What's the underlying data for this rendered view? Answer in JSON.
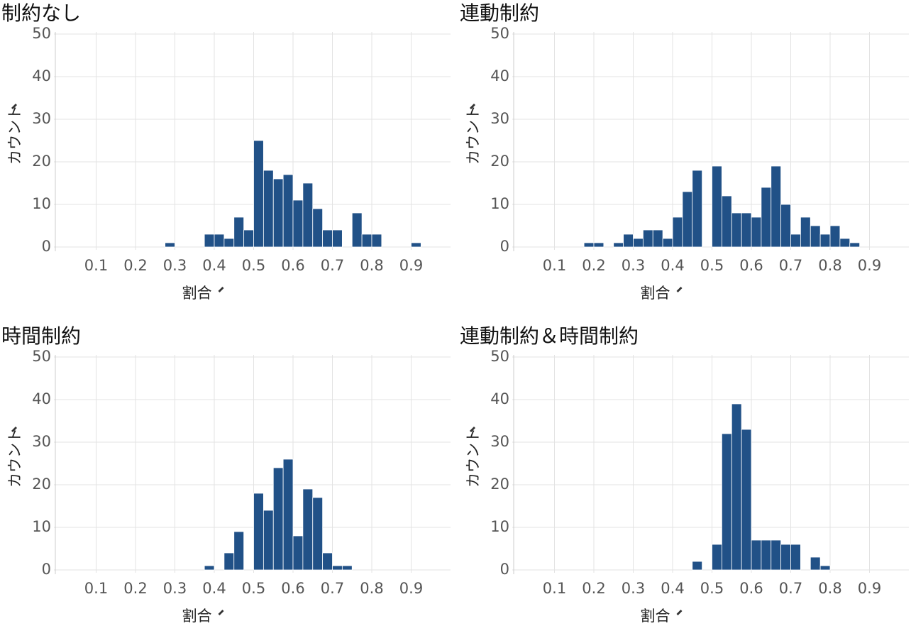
{
  "chart_data": [
    {
      "type": "histogram",
      "title": "制約なし",
      "x_label": "割合",
      "y_label": "カウント",
      "color": "#215187",
      "bins": [
        0,
        0.025,
        0.05,
        0.075,
        0.1,
        0.125,
        0.15,
        0.175,
        0.2,
        0.225,
        0.25,
        0.275,
        0.3,
        0.325,
        0.35,
        0.375,
        0.4,
        0.425,
        0.45,
        0.475,
        0.5,
        0.525,
        0.55,
        0.575,
        0.6,
        0.625,
        0.65,
        0.675,
        0.7,
        0.725,
        0.75,
        0.775,
        0.8,
        0.825,
        0.85,
        0.875,
        0.9,
        0.925,
        0.95,
        0.975,
        1
      ],
      "counts": [
        0,
        0,
        0,
        0,
        0,
        0,
        0,
        0,
        0,
        0,
        0,
        1,
        0,
        0,
        0,
        3,
        3,
        2,
        7,
        4,
        25,
        18,
        16,
        17,
        11,
        15,
        9,
        4,
        4,
        0,
        8,
        3,
        3,
        0,
        0,
        0,
        1,
        0,
        0,
        0
      ],
      "xlim": [
        0,
        1
      ],
      "ylim": [
        0,
        50
      ],
      "xticks": [
        0.1,
        0.2,
        0.3,
        0.4,
        0.5,
        0.6,
        0.7,
        0.8,
        0.9
      ],
      "yticks": [
        0,
        10,
        20,
        30,
        40,
        50
      ],
      "grid": true
    },
    {
      "type": "histogram",
      "title": "連動制約",
      "x_label": "割合",
      "y_label": "カウント",
      "color": "#215187",
      "bins": [
        0,
        0.025,
        0.05,
        0.075,
        0.1,
        0.125,
        0.15,
        0.175,
        0.2,
        0.225,
        0.25,
        0.275,
        0.3,
        0.325,
        0.35,
        0.375,
        0.4,
        0.425,
        0.45,
        0.475,
        0.5,
        0.525,
        0.55,
        0.575,
        0.6,
        0.625,
        0.65,
        0.675,
        0.7,
        0.725,
        0.75,
        0.775,
        0.8,
        0.825,
        0.85,
        0.875,
        0.9,
        0.925,
        0.95,
        0.975,
        1
      ],
      "counts": [
        0,
        0,
        0,
        0,
        0,
        0,
        0,
        1,
        1,
        0,
        1,
        3,
        2,
        4,
        4,
        2,
        7,
        13,
        18,
        0,
        19,
        12,
        8,
        8,
        7,
        14,
        19,
        10,
        3,
        7,
        5,
        3,
        5,
        2,
        1,
        0,
        0,
        0,
        0,
        0
      ],
      "xlim": [
        0,
        1
      ],
      "ylim": [
        0,
        50
      ],
      "xticks": [
        0.1,
        0.2,
        0.3,
        0.4,
        0.5,
        0.6,
        0.7,
        0.8,
        0.9
      ],
      "yticks": [
        0,
        10,
        20,
        30,
        40,
        50
      ],
      "grid": true
    },
    {
      "type": "histogram",
      "title": "時間制約",
      "x_label": "割合",
      "y_label": "カウント",
      "color": "#215187",
      "bins": [
        0,
        0.025,
        0.05,
        0.075,
        0.1,
        0.125,
        0.15,
        0.175,
        0.2,
        0.225,
        0.25,
        0.275,
        0.3,
        0.325,
        0.35,
        0.375,
        0.4,
        0.425,
        0.45,
        0.475,
        0.5,
        0.525,
        0.55,
        0.575,
        0.6,
        0.625,
        0.65,
        0.675,
        0.7,
        0.725,
        0.75,
        0.775,
        0.8,
        0.825,
        0.85,
        0.875,
        0.9,
        0.925,
        0.95,
        0.975,
        1
      ],
      "counts": [
        0,
        0,
        0,
        0,
        0,
        0,
        0,
        0,
        0,
        0,
        0,
        0,
        0,
        0,
        0,
        1,
        0,
        4,
        9,
        0,
        18,
        14,
        24,
        26,
        8,
        19,
        17,
        4,
        1,
        1,
        0,
        0,
        0,
        0,
        0,
        0,
        0,
        0,
        0,
        0
      ],
      "xlim": [
        0,
        1
      ],
      "ylim": [
        0,
        50
      ],
      "xticks": [
        0.1,
        0.2,
        0.3,
        0.4,
        0.5,
        0.6,
        0.7,
        0.8,
        0.9
      ],
      "yticks": [
        0,
        10,
        20,
        30,
        40,
        50
      ],
      "grid": true
    },
    {
      "type": "histogram",
      "title": "連動制約＆時間制約",
      "x_label": "割合",
      "y_label": "カウント",
      "color": "#215187",
      "bins": [
        0,
        0.025,
        0.05,
        0.075,
        0.1,
        0.125,
        0.15,
        0.175,
        0.2,
        0.225,
        0.25,
        0.275,
        0.3,
        0.325,
        0.35,
        0.375,
        0.4,
        0.425,
        0.45,
        0.475,
        0.5,
        0.525,
        0.55,
        0.575,
        0.6,
        0.625,
        0.65,
        0.675,
        0.7,
        0.725,
        0.75,
        0.775,
        0.8,
        0.825,
        0.85,
        0.875,
        0.9,
        0.925,
        0.95,
        0.975,
        1
      ],
      "counts": [
        0,
        0,
        0,
        0,
        0,
        0,
        0,
        0,
        0,
        0,
        0,
        0,
        0,
        0,
        0,
        0,
        0,
        0,
        2,
        0,
        6,
        32,
        39,
        33,
        7,
        7,
        7,
        6,
        6,
        0,
        3,
        1,
        0,
        0,
        0,
        0,
        0,
        0,
        0,
        0
      ],
      "xlim": [
        0,
        1
      ],
      "ylim": [
        0,
        50
      ],
      "xticks": [
        0.1,
        0.2,
        0.3,
        0.4,
        0.5,
        0.6,
        0.7,
        0.8,
        0.9
      ],
      "yticks": [
        0,
        10,
        20,
        30,
        40,
        50
      ],
      "grid": true
    }
  ]
}
